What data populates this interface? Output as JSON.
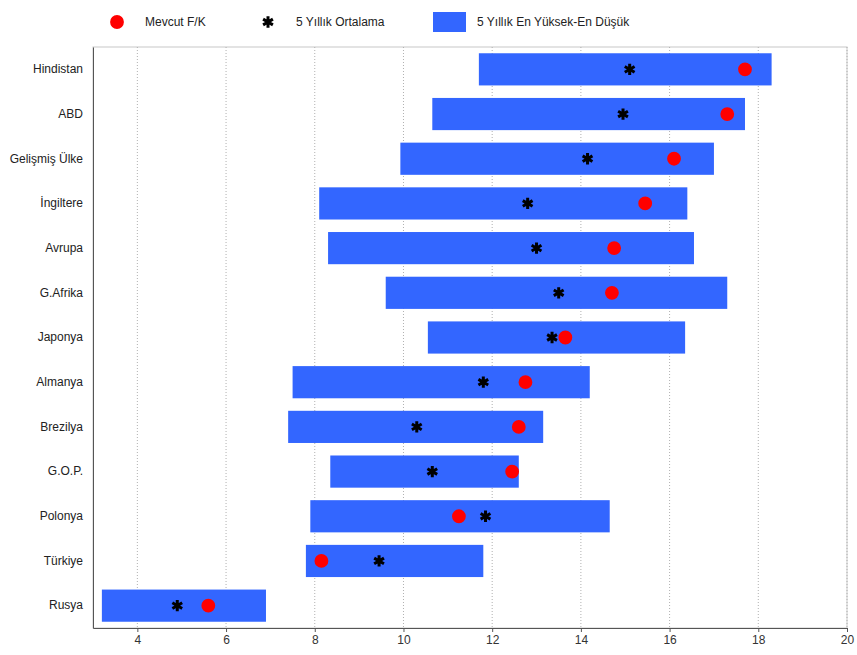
{
  "chart_data": {
    "type": "range",
    "orientation": "horizontal",
    "grid": true,
    "legend": "top",
    "categories": [
      "Hindistan",
      "ABD",
      "Gelişmiş Ülke",
      "İngiltere",
      "Avrupa",
      "G.Afrika",
      "Japonya",
      "Almanya",
      "Brezilya",
      "G.O.P.",
      "Polonya",
      "Türkiye",
      "Rusya"
    ],
    "xlim": [
      3,
      20
    ],
    "xticks": [
      4,
      6,
      8,
      10,
      12,
      14,
      16,
      18,
      20
    ],
    "series": [
      {
        "name": "Mevcut F/K",
        "type": "scatter",
        "color": "#ff0000",
        "marker": "circle",
        "values": [
          17.7,
          17.3,
          16.1,
          15.45,
          14.75,
          14.7,
          13.65,
          12.75,
          12.6,
          12.45,
          11.25,
          8.15,
          5.6
        ]
      },
      {
        "name": "5 Yıllık Ortalama",
        "type": "scatter",
        "color": "#000000",
        "marker": "asterisk",
        "values": [
          15.1,
          14.95,
          14.15,
          12.8,
          13.0,
          13.5,
          13.35,
          11.8,
          10.3,
          10.65,
          11.85,
          9.45,
          4.9
        ]
      },
      {
        "name": "5 Yıllık En Yüksek-En Düşük",
        "type": "range_bar",
        "color": "#3366ff",
        "low": [
          11.7,
          10.65,
          9.93,
          8.1,
          8.3,
          9.6,
          10.55,
          7.5,
          7.4,
          8.35,
          7.9,
          7.8,
          3.2
        ],
        "high": [
          18.3,
          17.7,
          17.0,
          16.4,
          16.55,
          17.3,
          16.35,
          14.2,
          13.15,
          12.6,
          14.65,
          11.8,
          6.9
        ]
      }
    ]
  }
}
